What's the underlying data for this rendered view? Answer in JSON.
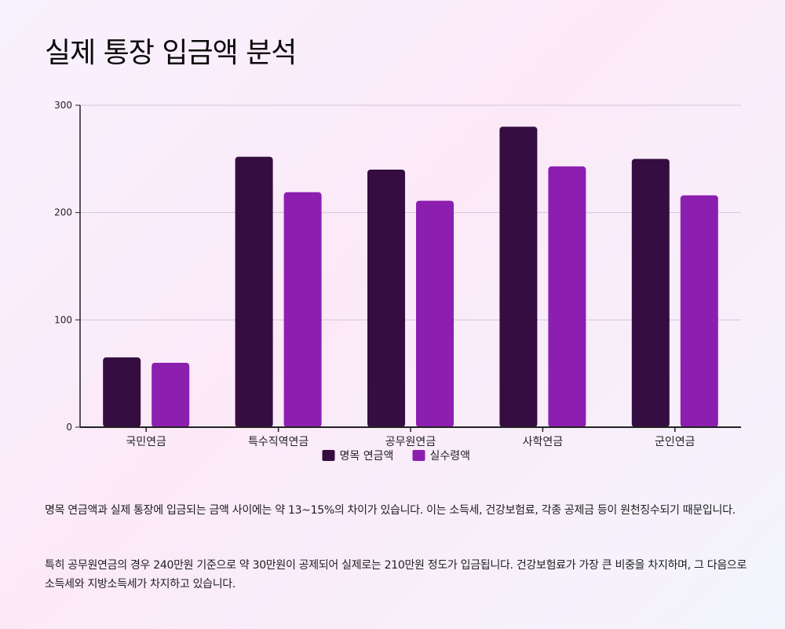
{
  "page": {
    "title": "실제 통장 입금액 분석"
  },
  "colors": {
    "series_1": "#350d40",
    "series_2": "#8c1fb0",
    "grid": "#d3c6dc",
    "axis": "#222222"
  },
  "chart_data": {
    "type": "bar",
    "categories": [
      "국민연금",
      "특수직역연금",
      "공무원연금",
      "사학연금",
      "군인연금"
    ],
    "series": [
      {
        "name": "명목 연금액",
        "values": [
          65,
          252,
          240,
          280,
          250
        ]
      },
      {
        "name": "실수령액",
        "values": [
          60,
          219,
          211,
          243,
          216
        ]
      }
    ],
    "yticks": [
      0,
      100,
      200,
      300
    ],
    "ylim": [
      0,
      300
    ],
    "grid": true,
    "legend_position": "bottom-center"
  },
  "description": {
    "paragraph_1": "명목 연금액과 실제 통장에 입금되는 금액 사이에는 약 13~15%의 차이가 있습니다. 이는 소득세, 건강보험료, 각종 공제금 등이 원천징수되기 때문입니다.",
    "paragraph_2": "특히 공무원연금의 경우 240만원 기준으로 약 30만원이 공제되어 실제로는 210만원 정도가 입금됩니다. 건강보험료가 가장 큰 비중을 차지하며, 그 다음으로 소득세와 지방소득세가 차지하고 있습니다."
  }
}
